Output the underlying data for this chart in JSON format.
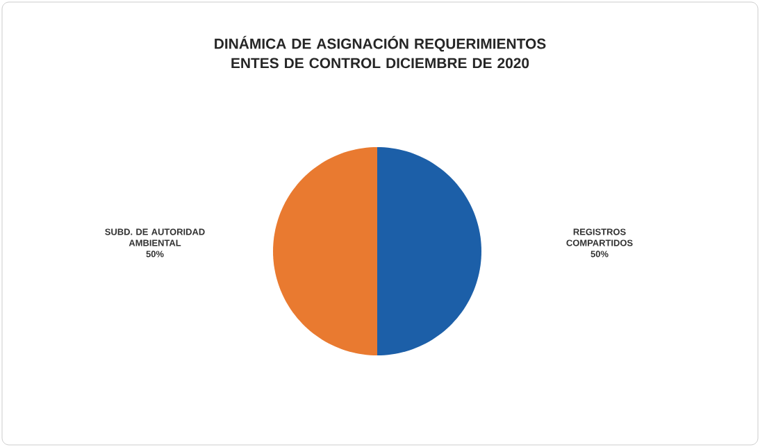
{
  "chart_data": {
    "type": "pie",
    "title": "DINÁMICA DE ASIGNACIÓN REQUERIMIENTOS ENTES DE CONTROL DICIEMBRE DE 2020",
    "categories": [
      "REGISTROS COMPARTIDOS",
      "SUBD. DE AUTORIDAD AMBIENTAL"
    ],
    "values": [
      50,
      50
    ],
    "colors": [
      "#1c5fa8",
      "#e97a30"
    ],
    "value_labels": [
      "50%",
      "50%"
    ],
    "legend": false
  }
}
